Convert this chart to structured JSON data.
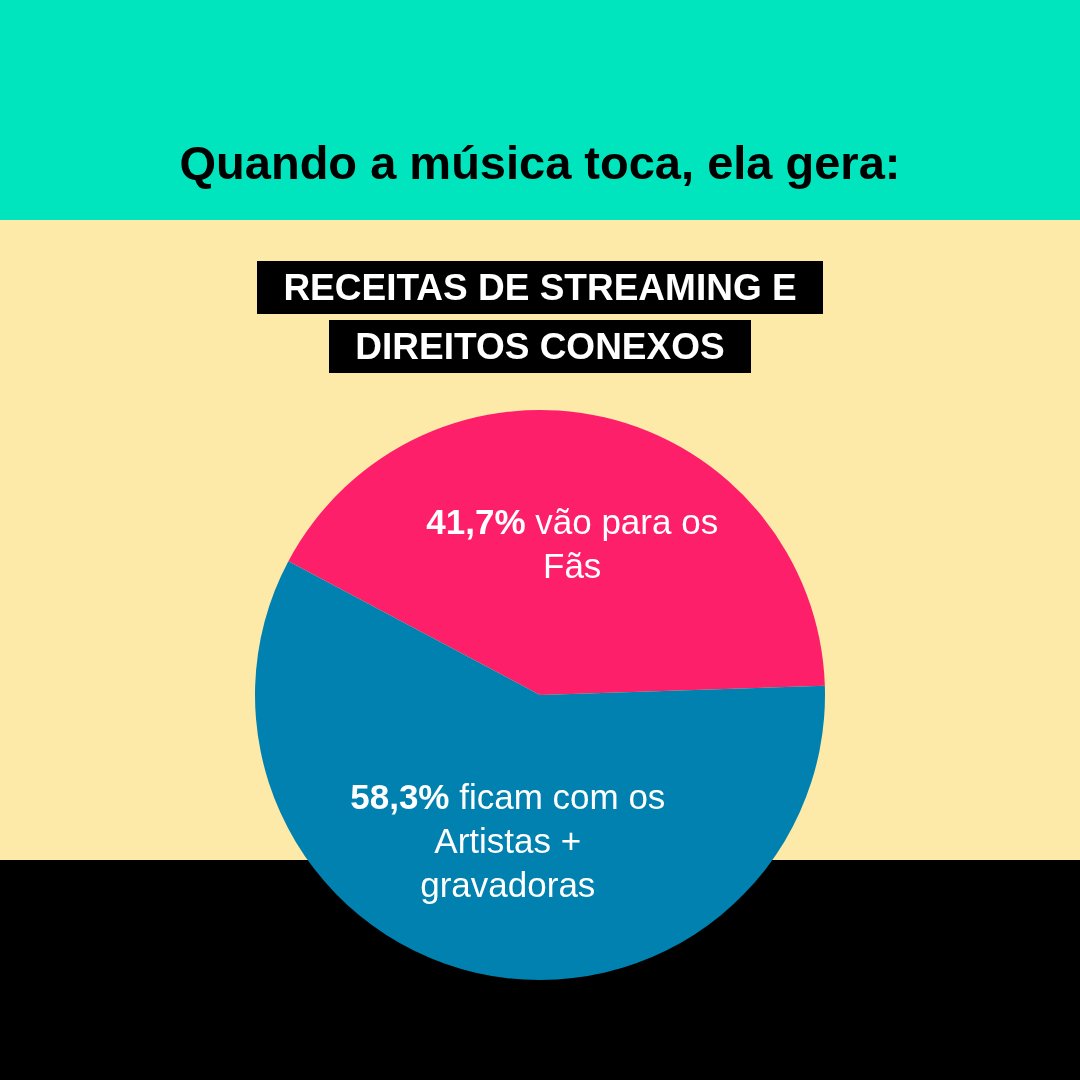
{
  "chart_data": {
    "type": "pie",
    "title": "Quando a música toca, ela gera:",
    "subtitle": "RECEITAS DE STREAMING E DIREITOS CONEXOS",
    "categories": [
      "vão para os Fãs",
      "ficam com os Artistas + gravadoras"
    ],
    "values": [
      41.7,
      58.3
    ],
    "value_labels": [
      "41,7%",
      "58,3%"
    ],
    "colors": [
      "#fe1f6a",
      "#0181b0"
    ],
    "legend": false
  }
}
